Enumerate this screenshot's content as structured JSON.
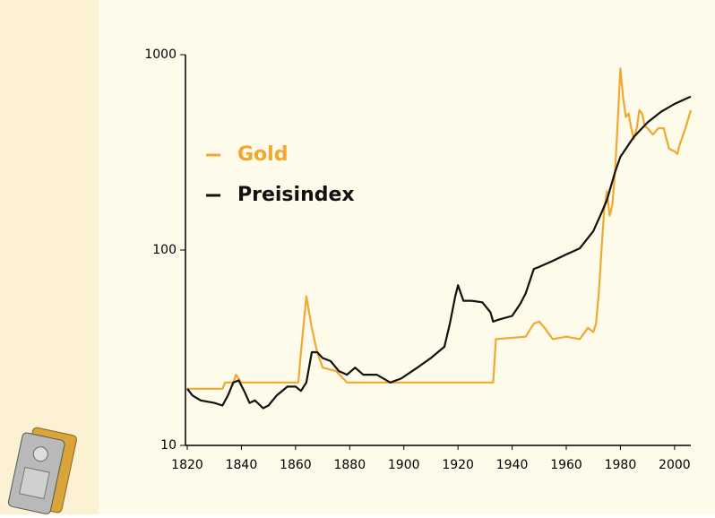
{
  "chart_data": {
    "type": "line",
    "log_scale": true,
    "xlim": [
      1820,
      2006
    ],
    "xticks": [
      1820,
      1840,
      1860,
      1880,
      1900,
      1920,
      1940,
      1960,
      1980,
      2000
    ],
    "ylim": [
      10,
      1000
    ],
    "yticks": [
      10,
      100,
      1000
    ],
    "legend": "upper left",
    "series": [
      {
        "name": "Gold",
        "color": "#f0a830",
        "x": [
          1820,
          1833,
          1834,
          1837,
          1838,
          1840,
          1861,
          1862,
          1864,
          1866,
          1868,
          1870,
          1875,
          1879,
          1933,
          1934,
          1945,
          1948,
          1950,
          1952,
          1955,
          1960,
          1965,
          1968,
          1970,
          1971,
          1972,
          1973,
          1974,
          1975,
          1976,
          1977,
          1978,
          1979,
          1980,
          1981,
          1982,
          1983,
          1984,
          1985,
          1986,
          1987,
          1988,
          1989,
          1990,
          1992,
          1994,
          1996,
          1997,
          1998,
          2000,
          2001,
          2002,
          2004,
          2006
        ],
        "values": [
          19.5,
          19.5,
          21,
          21,
          23,
          21,
          21,
          30,
          58,
          40,
          30,
          25,
          24,
          21,
          21,
          35,
          36,
          42,
          43,
          40,
          35,
          36,
          35,
          40,
          38,
          42,
          60,
          100,
          160,
          200,
          150,
          170,
          250,
          450,
          850,
          600,
          480,
          500,
          420,
          370,
          420,
          520,
          500,
          430,
          420,
          390,
          420,
          420,
          370,
          330,
          320,
          310,
          350,
          420,
          520
        ]
      },
      {
        "name": "Preisindex",
        "color": "#111111",
        "x": [
          1820,
          1822,
          1825,
          1830,
          1833,
          1835,
          1837,
          1839,
          1841,
          1843,
          1845,
          1847,
          1848,
          1850,
          1853,
          1857,
          1860,
          1862,
          1864,
          1866,
          1868,
          1870,
          1873,
          1876,
          1879,
          1882,
          1885,
          1890,
          1895,
          1899,
          1905,
          1910,
          1915,
          1917,
          1919,
          1920,
          1922,
          1925,
          1929,
          1932,
          1933,
          1935,
          1940,
          1943,
          1945,
          1948,
          1950,
          1955,
          1960,
          1965,
          1970,
          1973,
          1975,
          1978,
          1980,
          1985,
          1990,
          1995,
          2000,
          2006
        ],
        "values": [
          19.5,
          18,
          17,
          16.5,
          16,
          18,
          21,
          21.5,
          19,
          16.5,
          17,
          16,
          15.5,
          16,
          18,
          20,
          20,
          19,
          21,
          30,
          30,
          28,
          27,
          24,
          23,
          25,
          23,
          23,
          21,
          22,
          25,
          28,
          32,
          42,
          58,
          66,
          55,
          55,
          54,
          48,
          43,
          44,
          46,
          53,
          60,
          80,
          82,
          88,
          95,
          102,
          125,
          155,
          180,
          250,
          300,
          380,
          450,
          510,
          560,
          610
        ]
      }
    ]
  }
}
